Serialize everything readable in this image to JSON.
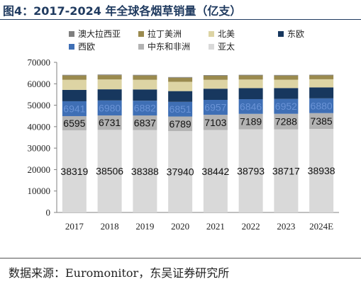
{
  "header": {
    "title": "图4：2017-2024 年全球各烟草销量（亿支）"
  },
  "footer": {
    "source": "数据来源：Euromonitor，东吴证券研究所"
  },
  "chart_data": {
    "type": "bar",
    "stacked": true,
    "categories": [
      "2017",
      "2018",
      "2019",
      "2020",
      "2021",
      "2022",
      "2023",
      "2024E"
    ],
    "ylim": [
      0,
      70000
    ],
    "yticks": [
      0,
      10000,
      20000,
      30000,
      40000,
      50000,
      60000,
      70000
    ],
    "grid": false,
    "legend_position": "top",
    "series": [
      {
        "name": "亚太",
        "color": "#d9d9d9",
        "labeled": true,
        "label_style": "dark",
        "values": [
          38319,
          38506,
          38388,
          37940,
          38442,
          38793,
          38717,
          38938
        ]
      },
      {
        "name": "中东和非洲",
        "color": "#b3b3b3",
        "labeled": true,
        "label_style": "dark",
        "values": [
          6595,
          6731,
          6837,
          6789,
          7103,
          7189,
          7288,
          7385
        ]
      },
      {
        "name": "西欧",
        "color": "#3f6fb5",
        "labeled": true,
        "label_style": "blue",
        "values": [
          6941,
          6980,
          6882,
          6851,
          6957,
          6846,
          6952,
          6880
        ]
      },
      {
        "name": "东欧",
        "color": "#17375e",
        "labeled": false,
        "values": [
          5300,
          5200,
          5250,
          5000,
          5200,
          5150,
          5050,
          5100
        ]
      },
      {
        "name": "北美",
        "color": "#ddd4a4",
        "labeled": false,
        "values": [
          4700,
          4600,
          4500,
          4350,
          4150,
          4000,
          3900,
          3800
        ]
      },
      {
        "name": "拉丁美洲",
        "color": "#9a8a4e",
        "labeled": false,
        "values": [
          2000,
          2000,
          2000,
          1900,
          1900,
          1900,
          1900,
          1800
        ]
      },
      {
        "name": "澳大拉西亚",
        "color": "#7f7f7f",
        "labeled": false,
        "values": [
          300,
          300,
          300,
          300,
          300,
          300,
          300,
          300
        ]
      }
    ]
  }
}
